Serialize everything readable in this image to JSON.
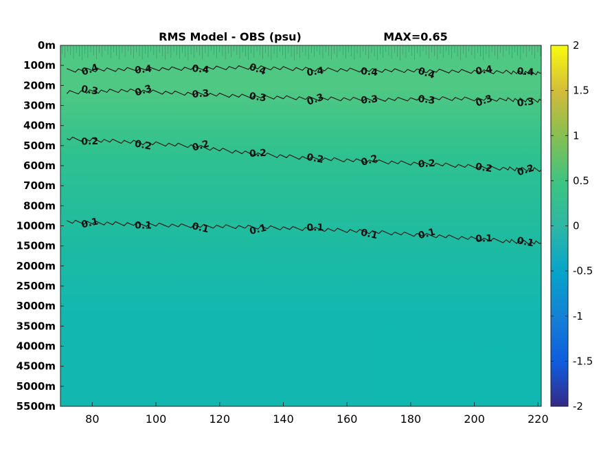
{
  "chart_data": {
    "type": "heatmap",
    "title": "RMS Model - OBS (psu)",
    "subtitle": "MAX=0.65",
    "xlabel": "",
    "ylabel": "",
    "xlim": [
      70,
      221
    ],
    "x_ticks": [
      80,
      100,
      120,
      140,
      160,
      180,
      200,
      220
    ],
    "y_tick_labels": [
      "0m",
      "100m",
      "200m",
      "300m",
      "400m",
      "500m",
      "600m",
      "700m",
      "800m",
      "1000m",
      "1500m",
      "2000m",
      "2500m",
      "3000m",
      "3500m",
      "4000m",
      "4500m",
      "5000m",
      "5500m"
    ],
    "y_scale": "piecewise (0-800m linear in 100m steps, 1000-5500m in 500m steps)",
    "colorbar": {
      "range": [
        -2,
        2
      ],
      "ticks": [
        2,
        1.5,
        1,
        0.5,
        0,
        -0.5,
        -1,
        -1.5,
        -2
      ],
      "colormap": "parula"
    },
    "field_colors": {
      "shallow": "#4fc883",
      "mid": "#2fc18f",
      "deep": "#1cbaa4",
      "abyss": "#12b8b0"
    },
    "contours": [
      {
        "level": 0.4,
        "label": "0.4",
        "depth_m": [
          [
            72,
            125
          ],
          [
            90,
            120
          ],
          [
            110,
            115
          ],
          [
            130,
            110
          ],
          [
            150,
            120
          ],
          [
            170,
            125
          ],
          [
            190,
            128
          ],
          [
            210,
            133
          ],
          [
            221,
            138
          ]
        ]
      },
      {
        "level": 0.3,
        "label": "0.3",
        "depth_m": [
          [
            72,
            235
          ],
          [
            90,
            225
          ],
          [
            110,
            240
          ],
          [
            130,
            255
          ],
          [
            150,
            265
          ],
          [
            170,
            270
          ],
          [
            190,
            265
          ],
          [
            210,
            270
          ],
          [
            221,
            275
          ]
        ]
      },
      {
        "level": 0.2,
        "label": "0.2",
        "depth_m": [
          [
            72,
            465
          ],
          [
            90,
            480
          ],
          [
            110,
            500
          ],
          [
            130,
            540
          ],
          [
            150,
            565
          ],
          [
            170,
            580
          ],
          [
            190,
            595
          ],
          [
            210,
            615
          ],
          [
            221,
            620
          ]
        ]
      },
      {
        "level": 0.1,
        "label": "0.1",
        "depth_m": [
          [
            72,
            960
          ],
          [
            90,
            980
          ],
          [
            110,
            1000
          ],
          [
            130,
            1030
          ],
          [
            150,
            1080
          ],
          [
            170,
            1160
          ],
          [
            190,
            1260
          ],
          [
            210,
            1380
          ],
          [
            221,
            1430
          ]
        ]
      }
    ]
  }
}
